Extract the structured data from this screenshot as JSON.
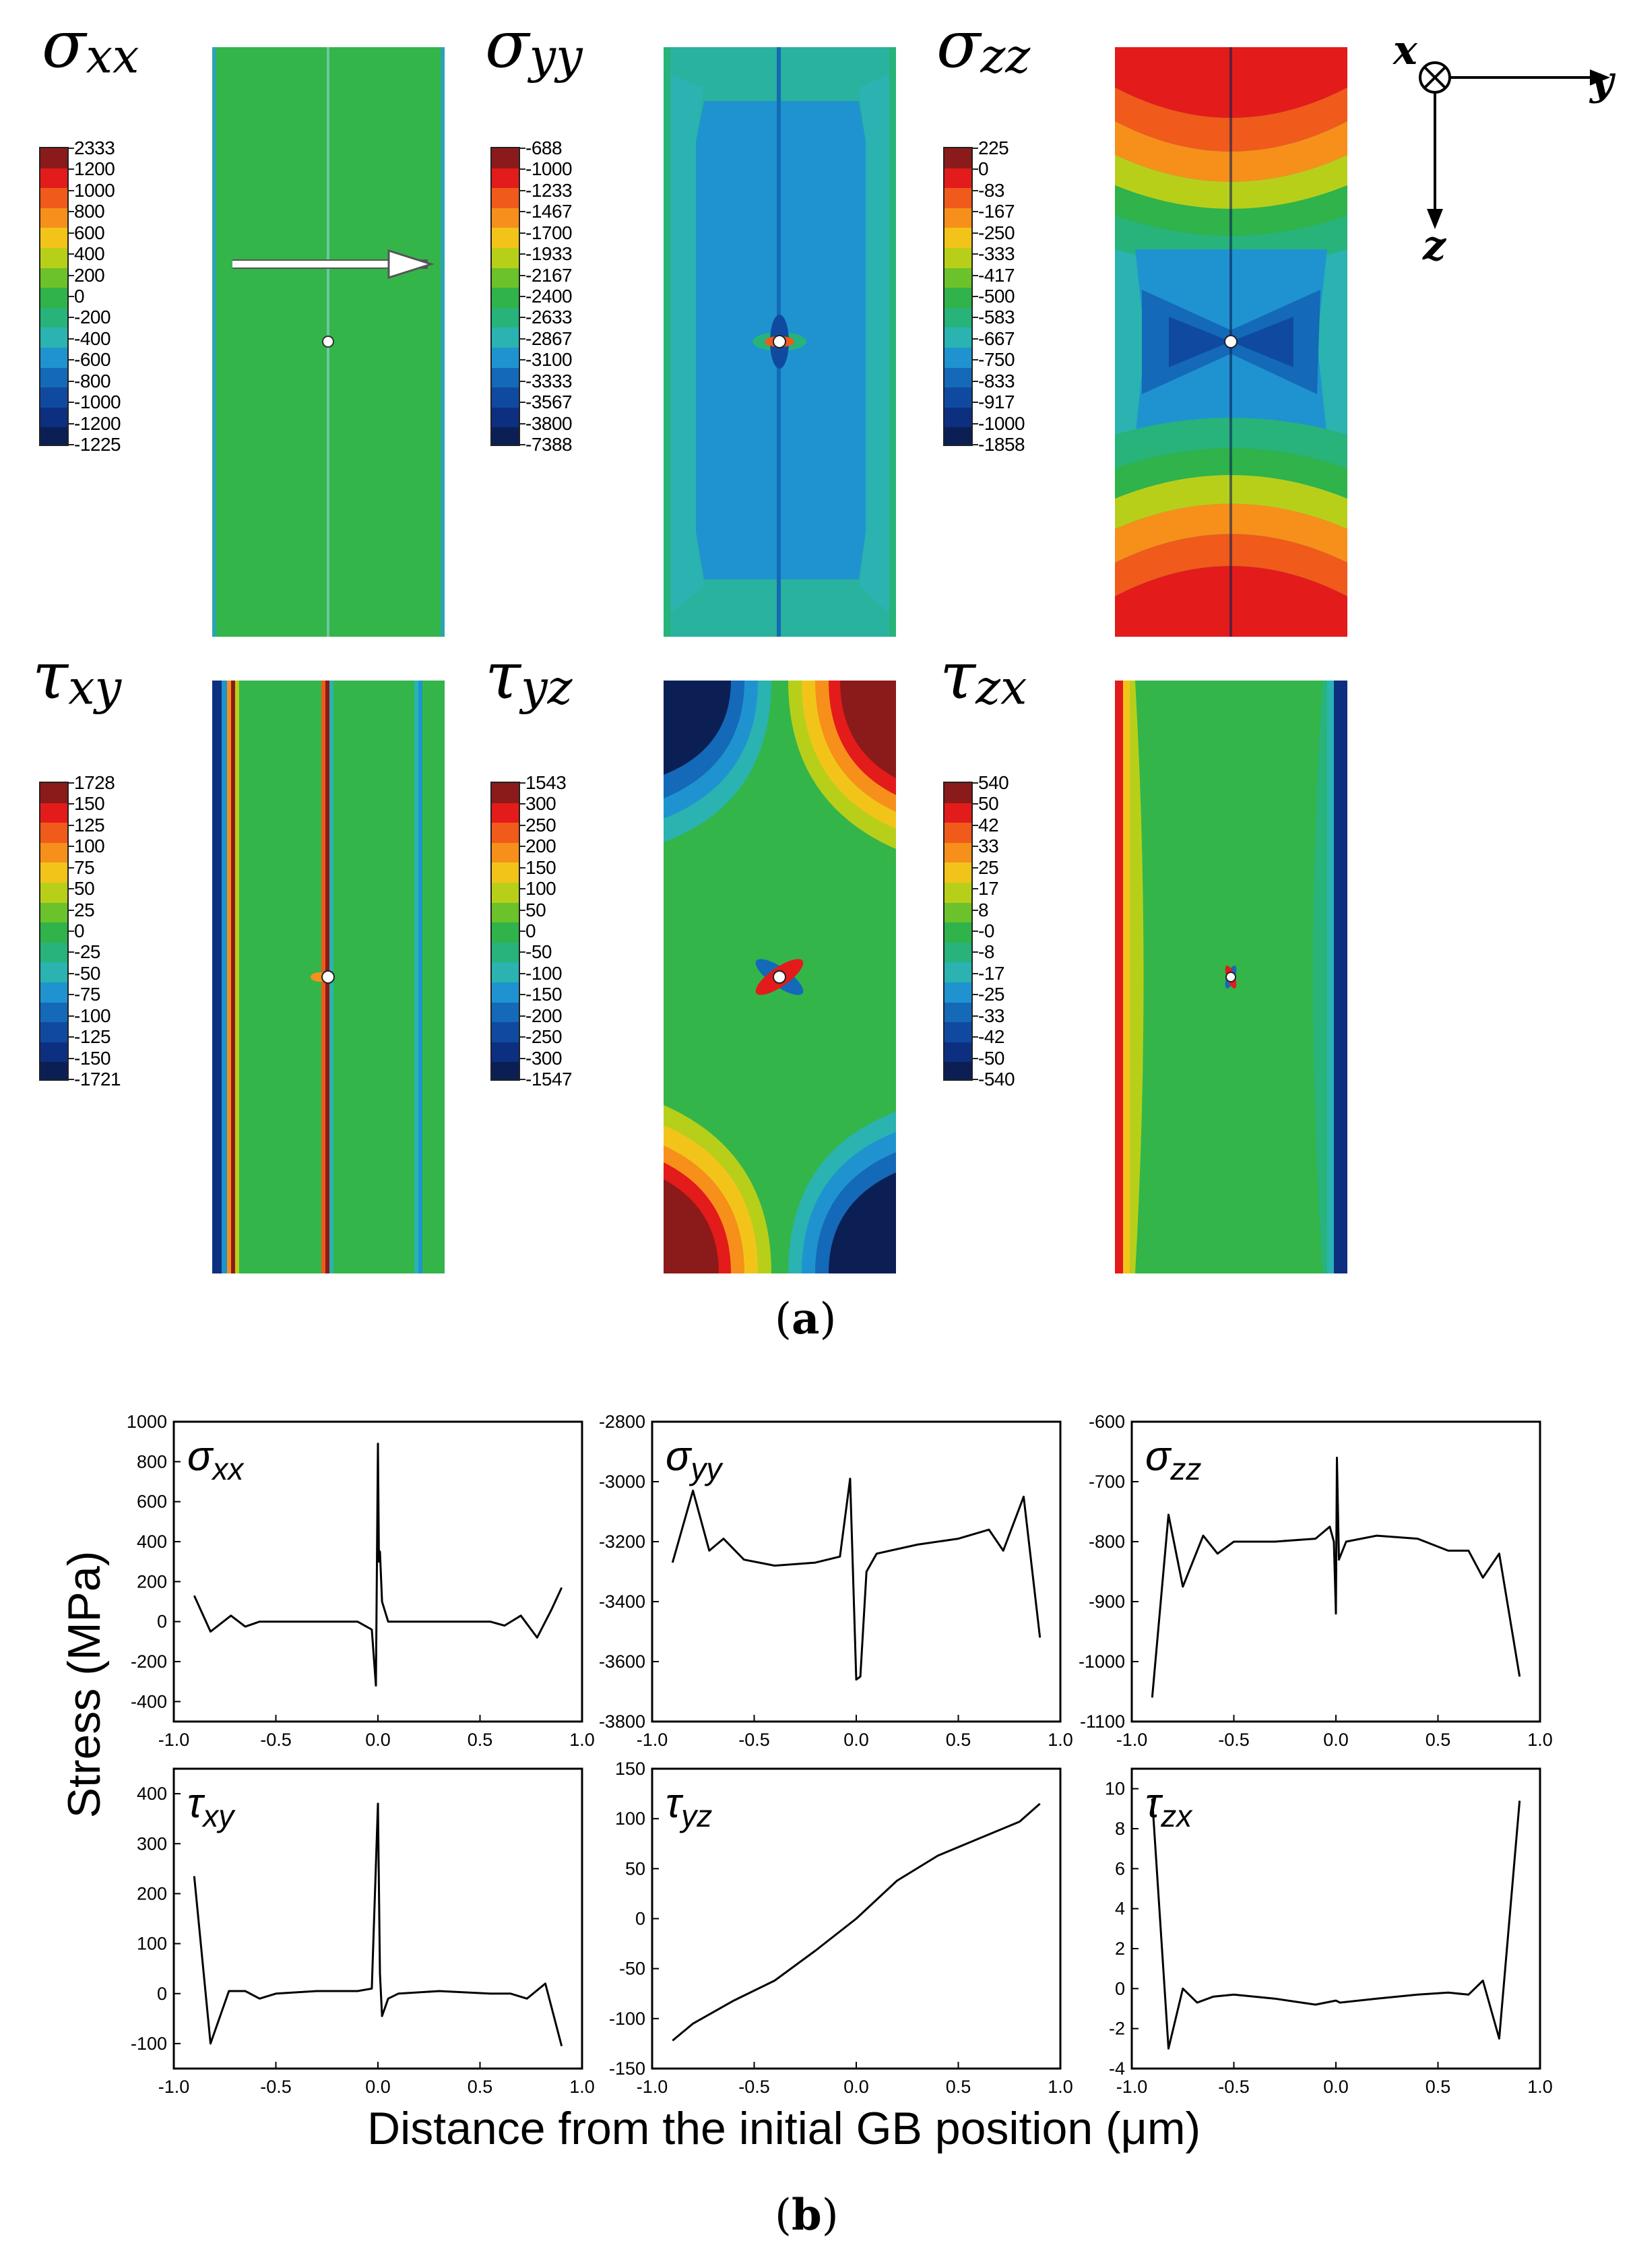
{
  "figure": {
    "subfigure_a_label": "a",
    "subfigure_b_label": "b",
    "axis_label_x": "x",
    "axis_label_y": "y",
    "axis_label_z": "z"
  },
  "contour_panels": [
    {
      "id": "sxx",
      "symbol": "σ",
      "subscript": "xx",
      "legend": [
        "2333",
        "1200",
        "1000",
        "800",
        "600",
        "400",
        "200",
        "0",
        "-200",
        "-400",
        "-600",
        "-800",
        "-1000",
        "-1200",
        "-1225"
      ]
    },
    {
      "id": "syy",
      "symbol": "σ",
      "subscript": "yy",
      "legend": [
        "-688",
        "-1000",
        "-1233",
        "-1467",
        "-1700",
        "-1933",
        "-2167",
        "-2400",
        "-2633",
        "-2867",
        "-3100",
        "-3333",
        "-3567",
        "-3800",
        "-7388"
      ]
    },
    {
      "id": "szz",
      "symbol": "σ",
      "subscript": "zz",
      "legend": [
        "225",
        "0",
        "-83",
        "-167",
        "-250",
        "-333",
        "-417",
        "-500",
        "-583",
        "-667",
        "-750",
        "-833",
        "-917",
        "-1000",
        "-1858"
      ]
    },
    {
      "id": "txy",
      "symbol": "τ",
      "subscript": "xy",
      "legend": [
        "1728",
        "150",
        "125",
        "100",
        "75",
        "50",
        "25",
        "0",
        "-25",
        "-50",
        "-75",
        "-100",
        "-125",
        "-150",
        "-1721"
      ]
    },
    {
      "id": "tyz",
      "symbol": "τ",
      "subscript": "yz",
      "legend": [
        "1543",
        "300",
        "250",
        "200",
        "150",
        "100",
        "50",
        "0",
        "-50",
        "-100",
        "-150",
        "-200",
        "-250",
        "-300",
        "-1547"
      ]
    },
    {
      "id": "tzx",
      "symbol": "τ",
      "subscript": "zx",
      "legend": [
        "540",
        "50",
        "42",
        "33",
        "25",
        "17",
        "8",
        "-0",
        "-8",
        "-17",
        "-25",
        "-33",
        "-42",
        "-50",
        "-540"
      ]
    }
  ],
  "colormap": [
    "#8b1a1a",
    "#e31b1b",
    "#f05a1a",
    "#f6901a",
    "#f2c41a",
    "#b8cf1a",
    "#6cc22a",
    "#2fb34a",
    "#27b37a",
    "#2ab3b0",
    "#1f93d0",
    "#1469b8",
    "#0f4aa0",
    "#0d2f80",
    "#0b1f55"
  ],
  "chart_data": [
    {
      "type": "line",
      "id": "sxx",
      "symbol": "σ",
      "subscript": "xx",
      "xlim": [
        -1.0,
        1.0
      ],
      "ylim": [
        -500,
        1000
      ],
      "xticks": [
        "-1.0",
        "-0.5",
        "0.0",
        "0.5",
        "1.0"
      ],
      "yticks": [
        "-400",
        "-200",
        "0",
        "200",
        "400",
        "600",
        "800",
        "1000"
      ],
      "x": [
        -0.9,
        -0.82,
        -0.72,
        -0.65,
        -0.58,
        -0.5,
        -0.3,
        -0.1,
        -0.03,
        -0.01,
        0.0,
        0.005,
        0.01,
        0.02,
        0.05,
        0.1,
        0.3,
        0.55,
        0.62,
        0.7,
        0.78,
        0.85,
        0.9
      ],
      "y": [
        130,
        -50,
        30,
        -25,
        0,
        0,
        0,
        0,
        -40,
        -320,
        890,
        300,
        350,
        100,
        0,
        0,
        0,
        0,
        -20,
        30,
        -80,
        60,
        170
      ]
    },
    {
      "type": "line",
      "id": "syy",
      "symbol": "σ",
      "subscript": "yy",
      "xlim": [
        -1.0,
        1.0
      ],
      "ylim": [
        -3800,
        -2800
      ],
      "xticks": [
        "-1.0",
        "-0.5",
        "0.0",
        "0.5",
        "1.0"
      ],
      "yticks": [
        "-3800",
        "-3600",
        "-3400",
        "-3200",
        "-3000",
        "-2800"
      ],
      "x": [
        -0.9,
        -0.8,
        -0.72,
        -0.65,
        -0.55,
        -0.4,
        -0.2,
        -0.08,
        -0.03,
        0.0,
        0.02,
        0.05,
        0.1,
        0.3,
        0.5,
        0.65,
        0.72,
        0.82,
        0.9
      ],
      "y": [
        -3270,
        -3030,
        -3230,
        -3190,
        -3260,
        -3280,
        -3270,
        -3250,
        -2990,
        -3660,
        -3650,
        -3300,
        -3240,
        -3210,
        -3190,
        -3160,
        -3230,
        -3050,
        -3520
      ]
    },
    {
      "type": "line",
      "id": "szz",
      "symbol": "σ",
      "subscript": "zz",
      "xlim": [
        -1.0,
        1.0
      ],
      "ylim": [
        -1100,
        -600
      ],
      "xticks": [
        "-1.0",
        "-0.5",
        "0.0",
        "0.5",
        "1.0"
      ],
      "yticks": [
        "-1100",
        "-1000",
        "-900",
        "-800",
        "-700",
        "-600"
      ],
      "x": [
        -0.9,
        -0.82,
        -0.75,
        -0.65,
        -0.58,
        -0.5,
        -0.3,
        -0.1,
        -0.03,
        -0.01,
        0.0,
        0.005,
        0.015,
        0.05,
        0.2,
        0.4,
        0.55,
        0.65,
        0.72,
        0.8,
        0.9
      ],
      "y": [
        -1060,
        -755,
        -875,
        -790,
        -820,
        -800,
        -800,
        -795,
        -775,
        -800,
        -920,
        -660,
        -830,
        -800,
        -790,
        -795,
        -815,
        -815,
        -860,
        -820,
        -1025
      ]
    },
    {
      "type": "line",
      "id": "txy",
      "symbol": "τ",
      "subscript": "xy",
      "xlim": [
        -1.0,
        1.0
      ],
      "ylim": [
        -150,
        450
      ],
      "xticks": [
        "-1.0",
        "-0.5",
        "0.0",
        "0.5",
        "1.0"
      ],
      "yticks": [
        "-100",
        "0",
        "100",
        "200",
        "300",
        "400"
      ],
      "x": [
        -0.9,
        -0.82,
        -0.73,
        -0.65,
        -0.58,
        -0.5,
        -0.3,
        -0.1,
        -0.03,
        0.0,
        0.01,
        0.02,
        0.05,
        0.1,
        0.3,
        0.55,
        0.65,
        0.73,
        0.82,
        0.9
      ],
      "y": [
        235,
        -100,
        5,
        5,
        -10,
        0,
        5,
        5,
        10,
        380,
        40,
        -45,
        -10,
        0,
        5,
        0,
        0,
        -10,
        20,
        -105
      ]
    },
    {
      "type": "line",
      "id": "tyz",
      "symbol": "τ",
      "subscript": "yz",
      "xlim": [
        -1.0,
        1.0
      ],
      "ylim": [
        -150,
        150
      ],
      "xticks": [
        "-1.0",
        "-0.5",
        "0.0",
        "0.5",
        "1.0"
      ],
      "yticks": [
        "-150",
        "-100",
        "-50",
        "0",
        "50",
        "100",
        "150"
      ],
      "x": [
        -0.9,
        -0.8,
        -0.6,
        -0.4,
        -0.2,
        0.0,
        0.2,
        0.4,
        0.6,
        0.8,
        0.9
      ],
      "y": [
        -122,
        -105,
        -82,
        -62,
        -32,
        0,
        38,
        63,
        80,
        97,
        115
      ]
    },
    {
      "type": "line",
      "id": "tzx",
      "symbol": "τ",
      "subscript": "zx",
      "xlim": [
        -1.0,
        1.0
      ],
      "ylim": [
        -4,
        11
      ],
      "xticks": [
        "-1.0",
        "-0.5",
        "0.0",
        "0.5",
        "1.0"
      ],
      "yticks": [
        "-4",
        "-2",
        "0",
        "2",
        "4",
        "6",
        "8",
        "10"
      ],
      "x": [
        -0.9,
        -0.82,
        -0.75,
        -0.68,
        -0.6,
        -0.5,
        -0.3,
        -0.1,
        0.0,
        0.02,
        0.2,
        0.4,
        0.55,
        0.65,
        0.72,
        0.8,
        0.9
      ],
      "y": [
        9.5,
        -3.0,
        0.0,
        -0.7,
        -0.4,
        -0.3,
        -0.5,
        -0.8,
        -0.6,
        -0.7,
        -0.5,
        -0.3,
        -0.2,
        -0.3,
        0.4,
        -2.5,
        9.4
      ]
    }
  ],
  "plot_axes": {
    "ylabel": "Stress (MPa)",
    "xlabel": "Distance from the initial GB position (μm)"
  }
}
